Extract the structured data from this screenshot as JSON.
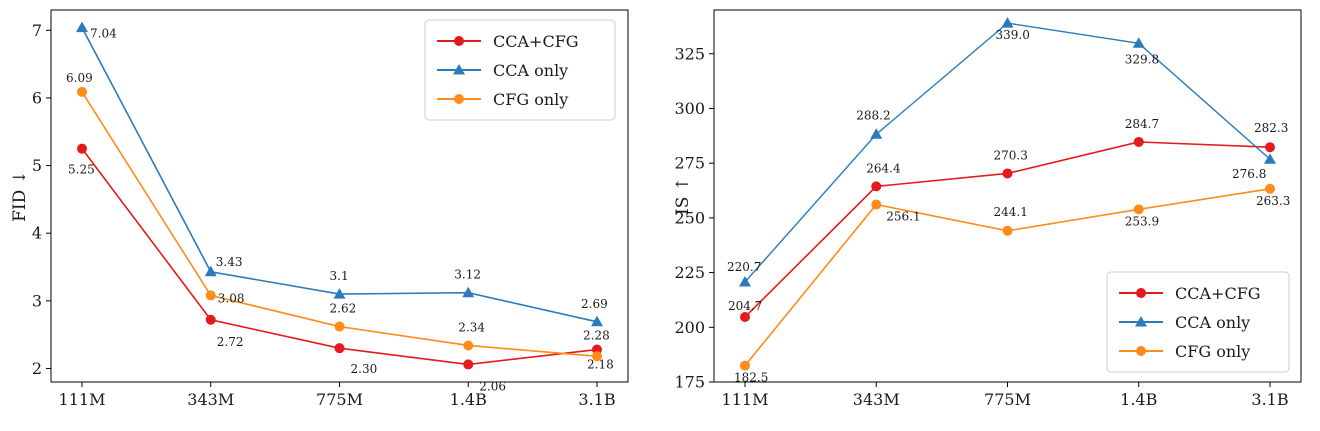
{
  "chart_data": [
    {
      "type": "line",
      "categories": [
        "111M",
        "343M",
        "775M",
        "1.4B",
        "3.1B"
      ],
      "ylabel": "FID ↓",
      "xlabel": "",
      "ylim": [
        1.8,
        7.3
      ],
      "yticks": [
        2,
        3,
        4,
        5,
        6,
        7
      ],
      "grid": false,
      "legend_position": "top-right",
      "series": [
        {
          "name": "CCA+CFG",
          "color": "#e41a1c",
          "marker": "circle",
          "values": [
            5.25,
            2.72,
            2.3,
            2.06,
            2.28
          ],
          "labels": [
            "5.25",
            "2.72",
            "2.30",
            "2.06",
            "2.28"
          ]
        },
        {
          "name": "CCA only",
          "color": "#2b7bba",
          "marker": "triangle",
          "values": [
            7.04,
            3.43,
            3.1,
            3.12,
            2.69
          ],
          "labels": [
            "7.04",
            "3.43",
            "3.1",
            "3.12",
            "2.69"
          ]
        },
        {
          "name": "CFG only",
          "color": "#ff8c1a",
          "marker": "circle",
          "values": [
            6.09,
            3.08,
            2.62,
            2.34,
            2.18
          ],
          "labels": [
            "6.09",
            "3.08",
            "2.62",
            "2.34",
            "2.18"
          ]
        }
      ]
    },
    {
      "type": "line",
      "categories": [
        "111M",
        "343M",
        "775M",
        "1.4B",
        "3.1B"
      ],
      "ylabel": "IS ↑",
      "xlabel": "",
      "ylim": [
        175,
        345
      ],
      "yticks": [
        175,
        200,
        225,
        250,
        275,
        300,
        325
      ],
      "grid": false,
      "legend_position": "bottom-right",
      "series": [
        {
          "name": "CCA+CFG",
          "color": "#e41a1c",
          "marker": "circle",
          "values": [
            204.7,
            264.4,
            270.3,
            284.7,
            282.3
          ],
          "labels": [
            "204.7",
            "264.4",
            "270.3",
            "284.7",
            "282.3"
          ]
        },
        {
          "name": "CCA only",
          "color": "#2b7bba",
          "marker": "triangle",
          "values": [
            220.7,
            288.2,
            339.0,
            329.8,
            276.8
          ],
          "labels": [
            "220.7",
            "288.2",
            "339.0",
            "329.8",
            "276.8"
          ]
        },
        {
          "name": "CFG only",
          "color": "#ff8c1a",
          "marker": "circle",
          "values": [
            182.5,
            256.1,
            244.1,
            253.9,
            263.3
          ],
          "labels": [
            "182.5",
            "256.1",
            "244.1",
            "253.9",
            "263.3"
          ]
        }
      ]
    }
  ]
}
